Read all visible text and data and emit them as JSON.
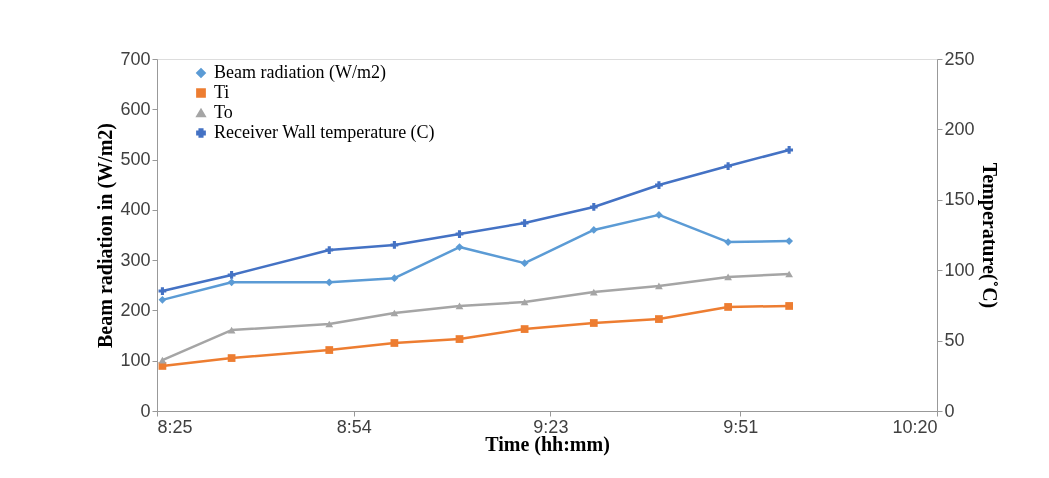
{
  "chart_data": {
    "type": "line",
    "xlabel": "Time (hh:mm)",
    "ylabel": "Beam radiation in (W/m2)",
    "y2label": "Temperature(˚C)",
    "x": [
      8.43,
      8.6,
      8.84,
      9.0,
      9.16,
      9.32,
      9.49,
      9.65,
      9.82,
      9.97
    ],
    "xlim": [
      8.4167,
      10.3333
    ],
    "xticks": [
      {
        "value": 8.4167,
        "label": "8:25"
      },
      {
        "value": 8.9,
        "label": "8:54"
      },
      {
        "value": 9.3833,
        "label": "9:23"
      },
      {
        "value": 9.85,
        "label": "9:51"
      },
      {
        "value": 10.3333,
        "label": "10:20"
      }
    ],
    "ylim": [
      0,
      700
    ],
    "yticks": [
      0,
      100,
      200,
      300,
      400,
      500,
      600,
      700
    ],
    "y2lim": [
      0,
      250
    ],
    "y2ticks": [
      0,
      50,
      100,
      150,
      200,
      250
    ],
    "grid": false,
    "legend": "top left",
    "series": [
      {
        "name": "Beam radiation (W/m2)",
        "color": "#5b9bd5",
        "marker": "diamond",
        "values": [
          221,
          256,
          256,
          264,
          326,
          294,
          360,
          390,
          336,
          338
        ]
      },
      {
        "name": "Ti",
        "color": "#ed7d31",
        "marker": "square",
        "axis": "y2",
        "values": [
          32,
          37.6,
          43.3,
          48.3,
          51.1,
          58.2,
          62.5,
          65.3,
          73.9,
          74.6
        ]
      },
      {
        "name": "To",
        "color": "#a5a5a5",
        "marker": "triangle",
        "axis": "y2",
        "values": [
          36.2,
          57.5,
          61.8,
          69.6,
          74.6,
          77.4,
          84.5,
          88.8,
          95.2,
          97.3
        ]
      },
      {
        "name": "Receiver Wall temperature (C)",
        "color": "#4472c4",
        "marker": "cross",
        "axis": "y2",
        "values": [
          85.2,
          96.6,
          114.3,
          117.9,
          125.7,
          133.5,
          144.9,
          160.5,
          174,
          185.4
        ]
      }
    ]
  }
}
